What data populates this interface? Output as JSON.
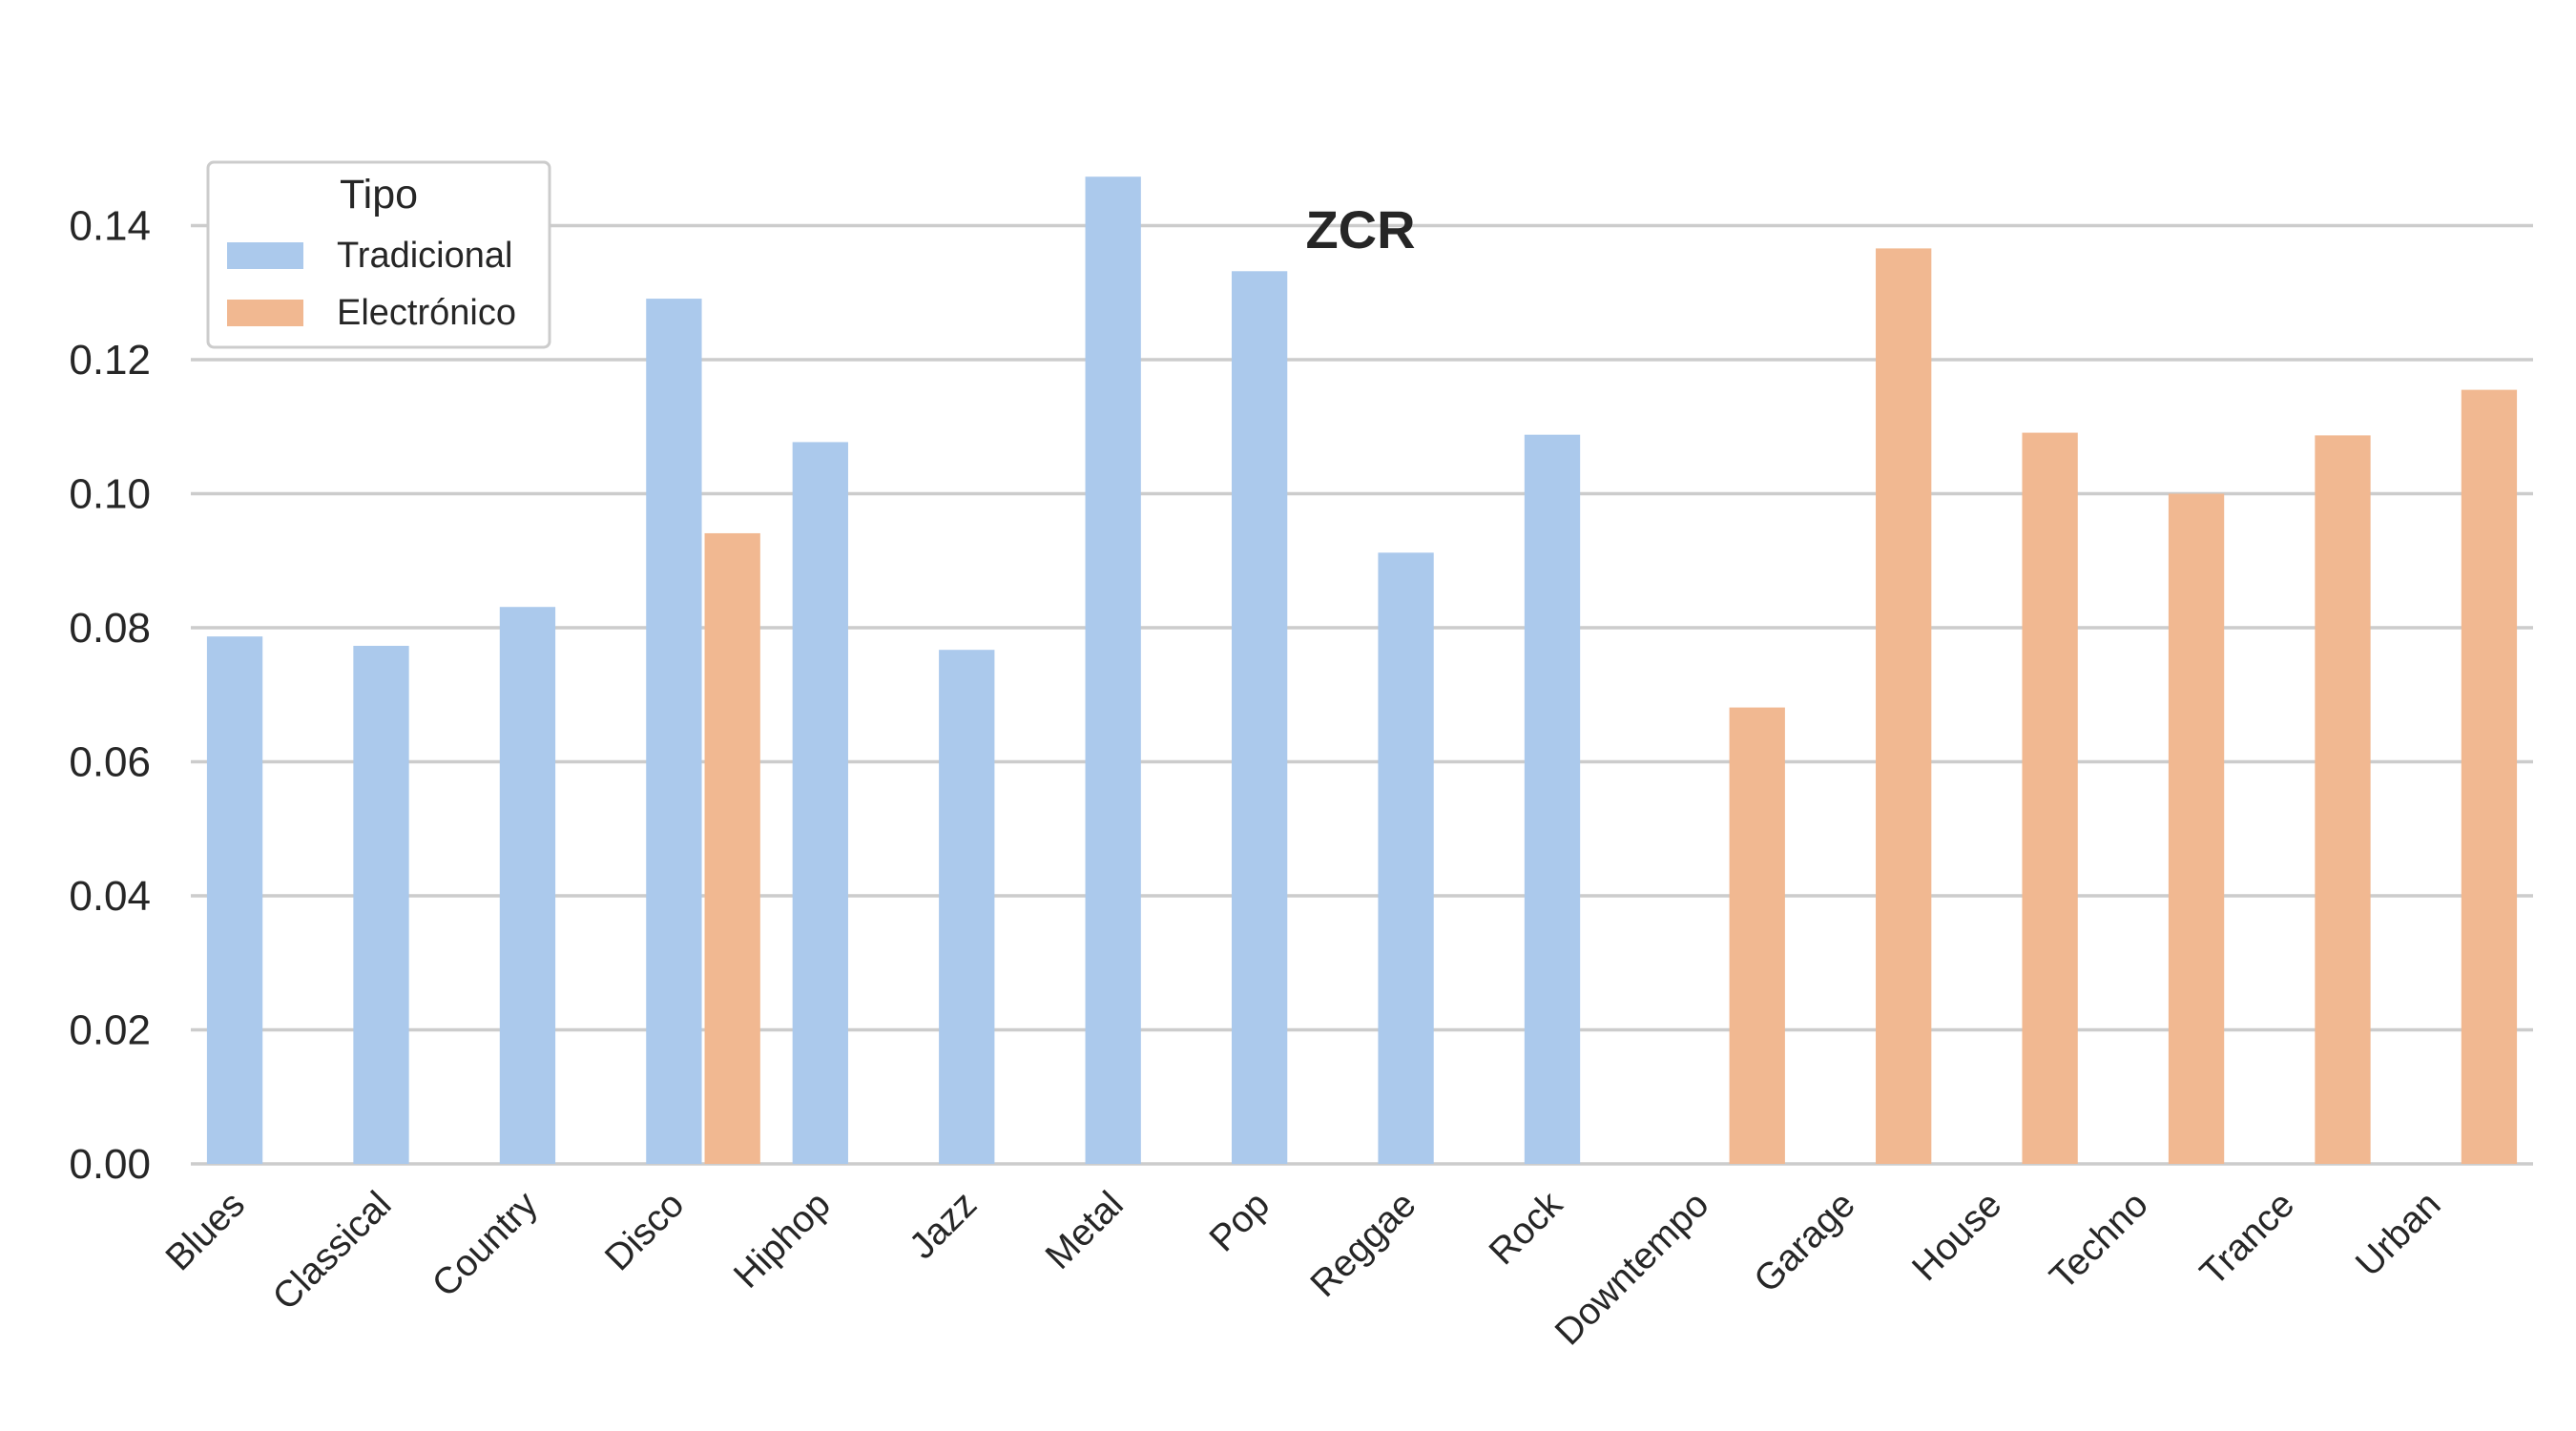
{
  "chart_data": {
    "type": "bar",
    "title": "ZCR",
    "xlabel": "",
    "ylabel": "",
    "ylim": [
      0,
      0.16
    ],
    "yticks": [
      "0.00",
      "0.02",
      "0.04",
      "0.06",
      "0.08",
      "0.10",
      "0.12",
      "0.14"
    ],
    "grid": true,
    "legend_position": "top-left",
    "legend_title": "Tipo",
    "categories": [
      "Blues",
      "Classical",
      "Country",
      "Disco",
      "Hiphop",
      "Jazz",
      "Metal",
      "Pop",
      "Reggae",
      "Rock",
      "Downtempo",
      "Garage",
      "House",
      "Techno",
      "Trance",
      "Urban"
    ],
    "series": [
      {
        "name": "Tradicional",
        "color": "#abc9ec",
        "values": [
          0.0787,
          0.0773,
          0.0831,
          0.1291,
          0.1077,
          0.0767,
          0.1473,
          0.1332,
          0.0912,
          0.1088,
          null,
          null,
          null,
          null,
          null,
          null
        ]
      },
      {
        "name": "Electrónico",
        "color": "#f1b891",
        "values": [
          null,
          null,
          null,
          0.0941,
          null,
          null,
          null,
          null,
          null,
          null,
          0.0681,
          0.1366,
          0.1091,
          0.1,
          0.1087,
          0.1155
        ]
      }
    ]
  }
}
